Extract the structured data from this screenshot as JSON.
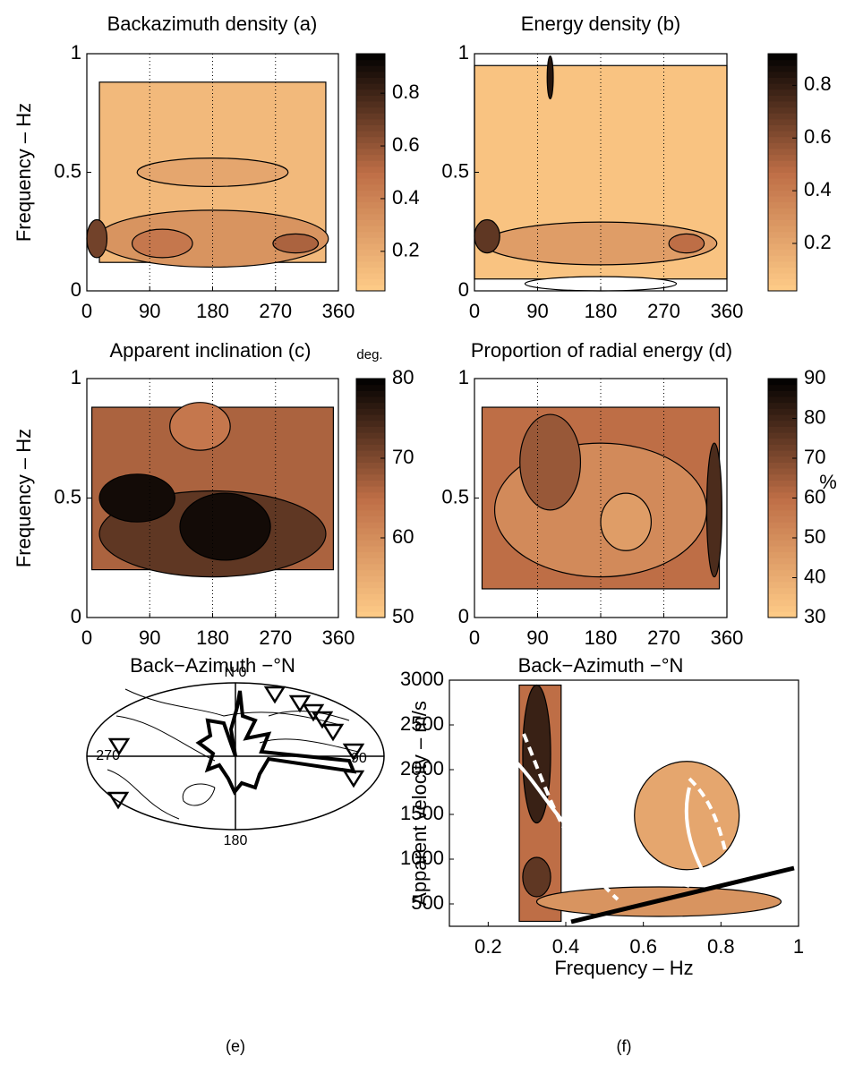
{
  "chart_data": [
    {
      "type": "contour",
      "title": "Backazimuth density (a)",
      "ylabel": "Frequency – Hz",
      "xlim": [
        0,
        360
      ],
      "xticks": [
        0,
        90,
        180,
        270,
        360
      ],
      "ylim": [
        0,
        1
      ],
      "yticks": [
        0,
        0.5,
        1
      ],
      "grid": true,
      "colorbar": {
        "lim": [
          0.05,
          0.95
        ],
        "ticks": [
          0.2,
          0.4,
          0.6,
          0.8
        ]
      }
    },
    {
      "type": "contour",
      "title": "Energy density (b)",
      "xlim": [
        0,
        360
      ],
      "xticks": [
        0,
        90,
        180,
        270,
        360
      ],
      "ylim": [
        0,
        1
      ],
      "yticks": [
        0,
        0.5,
        1
      ],
      "grid": true,
      "colorbar": {
        "lim": [
          0.02,
          0.92
        ],
        "ticks": [
          0.2,
          0.4,
          0.6,
          0.8
        ]
      }
    },
    {
      "type": "contour",
      "title": "Apparent inclination (c)",
      "ylabel": "Frequency – Hz",
      "xlabel": "Back−Azimuth −°N",
      "xlim": [
        0,
        360
      ],
      "xticks": [
        0,
        90,
        180,
        270,
        360
      ],
      "ylim": [
        0,
        1
      ],
      "yticks": [
        0,
        0.5,
        1
      ],
      "grid": true,
      "colorbar": {
        "label": "deg.",
        "lim": [
          50,
          80
        ],
        "ticks": [
          50,
          60,
          70,
          80
        ]
      }
    },
    {
      "type": "contour",
      "title": "Proportion of radial energy (d)",
      "xlabel": "Back−Azimuth −°N",
      "xlim": [
        0,
        360
      ],
      "xticks": [
        0,
        90,
        180,
        270,
        360
      ],
      "ylim": [
        0,
        1
      ],
      "yticks": [
        0,
        0.5,
        1
      ],
      "grid": true,
      "colorbar": {
        "label": "%",
        "lim": [
          30,
          90
        ],
        "ticks": [
          30,
          40,
          50,
          60,
          70,
          80,
          90
        ]
      }
    },
    {
      "type": "polar",
      "labels": [
        "N 0",
        "90",
        "180",
        "270"
      ],
      "caption": "(e)"
    },
    {
      "type": "contour",
      "ylabel": "Apparent velocity – m/s",
      "xlabel": "Frequency – Hz",
      "xlim": [
        0.1,
        1
      ],
      "xticks": [
        0.2,
        0.4,
        0.6,
        0.8,
        1
      ],
      "ylim": [
        250,
        3000
      ],
      "yticks": [
        500,
        1000,
        1500,
        2000,
        2500,
        3000
      ],
      "grid": false,
      "caption": "(f)"
    }
  ]
}
